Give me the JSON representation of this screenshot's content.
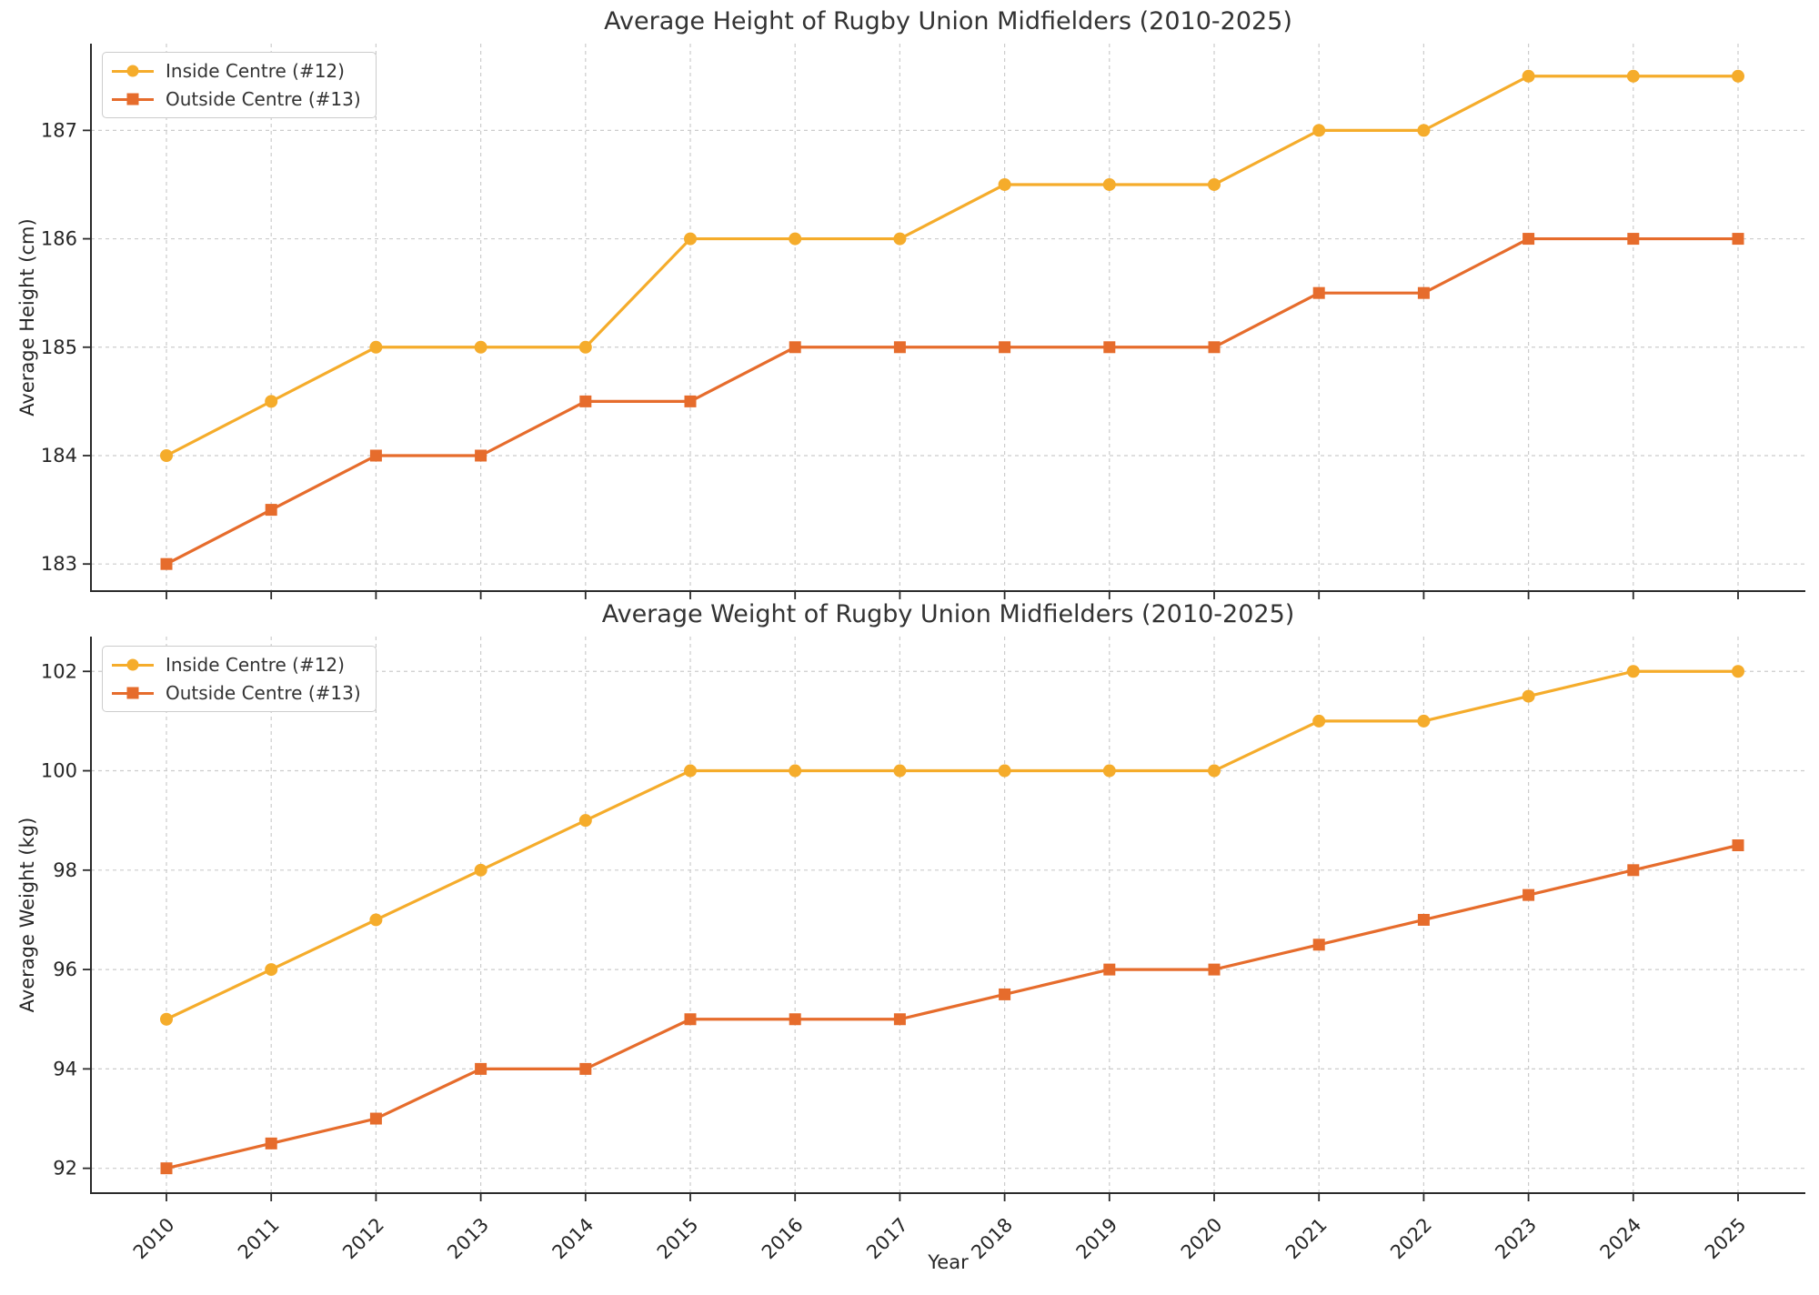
{
  "figure": {
    "xlabel": "Year",
    "background": "#ffffff",
    "grid_color": "#cccccc",
    "spine_color": "#2b2b2b",
    "text_color": "#262626"
  },
  "chart_data": [
    {
      "type": "line",
      "title": "Average Height of Rugby Union Midfielders (2010-2025)",
      "xlabel": "",
      "ylabel": "Average Height (cm)",
      "x": [
        2010,
        2011,
        2012,
        2013,
        2014,
        2015,
        2016,
        2017,
        2018,
        2019,
        2020,
        2021,
        2022,
        2023,
        2024,
        2025
      ],
      "yticks": [
        183,
        184,
        185,
        186,
        187
      ],
      "ylim": [
        182.75,
        187.8
      ],
      "grid": true,
      "legend_position": "upper left",
      "show_x_tick_labels": false,
      "series": [
        {
          "name": "Inside Centre (#12)",
          "color": "#F5AC2B",
          "marker": "circle",
          "values": [
            184,
            184.5,
            185,
            185,
            185,
            186,
            186,
            186,
            186.5,
            186.5,
            186.5,
            187,
            187,
            187.5,
            187.5,
            187.5
          ]
        },
        {
          "name": "Outside Centre (#13)",
          "color": "#E66C2C",
          "marker": "square",
          "values": [
            183,
            183.5,
            184,
            184,
            184.5,
            184.5,
            185,
            185,
            185,
            185,
            185,
            185.5,
            185.5,
            186,
            186,
            186
          ]
        }
      ]
    },
    {
      "type": "line",
      "title": "Average Weight of Rugby Union Midfielders (2010-2025)",
      "xlabel": "Year",
      "ylabel": "Average Weight (kg)",
      "x": [
        2010,
        2011,
        2012,
        2013,
        2014,
        2015,
        2016,
        2017,
        2018,
        2019,
        2020,
        2021,
        2022,
        2023,
        2024,
        2025
      ],
      "yticks": [
        92,
        94,
        96,
        98,
        100,
        102
      ],
      "ylim": [
        91.5,
        102.7
      ],
      "grid": true,
      "legend_position": "upper left",
      "show_x_tick_labels": true,
      "series": [
        {
          "name": "Inside Centre (#12)",
          "color": "#F5AC2B",
          "marker": "circle",
          "values": [
            95,
            96,
            97,
            98,
            99,
            100,
            100,
            100,
            100,
            100,
            100,
            101,
            101,
            101.5,
            102,
            102
          ]
        },
        {
          "name": "Outside Centre (#13)",
          "color": "#E66C2C",
          "marker": "square",
          "values": [
            92,
            92.5,
            93,
            94,
            94,
            95,
            95,
            95,
            95.5,
            96,
            96,
            96.5,
            97,
            97.5,
            98,
            98.5
          ]
        }
      ]
    }
  ]
}
